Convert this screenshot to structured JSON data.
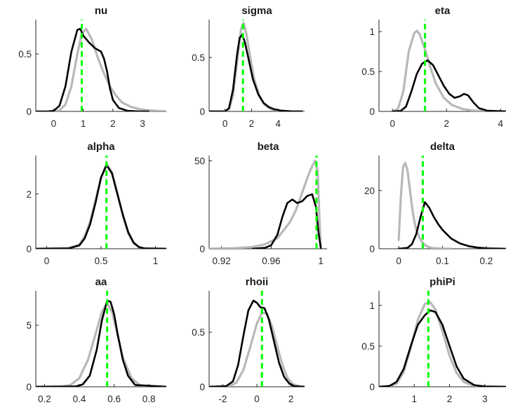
{
  "figure": {
    "colors": {
      "prior": "#b8b8b8",
      "posterior": "#000000",
      "mode": "#00ff00",
      "axis": "#262626"
    }
  },
  "chart_data": [
    {
      "type": "line",
      "title": "nu",
      "xlim": [
        -0.6,
        3.8
      ],
      "ylim": [
        0,
        0.8
      ],
      "xticks": [
        0,
        1,
        2,
        3
      ],
      "xticklabels": [
        "0",
        "1",
        "2",
        "3"
      ],
      "yticks": [
        0,
        0.5
      ],
      "yticklabels": [
        "0",
        "0.5"
      ],
      "mode": 0.95,
      "series": [
        {
          "role": "prior",
          "x": [
            0,
            0.2,
            0.4,
            0.6,
            0.8,
            0.95,
            1.1,
            1.3,
            1.5,
            1.7,
            1.9,
            2.1,
            2.3,
            2.6,
            2.9,
            3.2,
            3.5,
            3.8
          ],
          "y": [
            0,
            0.01,
            0.06,
            0.22,
            0.5,
            0.68,
            0.72,
            0.62,
            0.46,
            0.33,
            0.22,
            0.14,
            0.08,
            0.04,
            0.02,
            0.01,
            0.005,
            0
          ]
        },
        {
          "role": "posterior",
          "x": [
            -0.6,
            -0.2,
            0,
            0.2,
            0.4,
            0.6,
            0.8,
            0.9,
            1.0,
            1.2,
            1.4,
            1.6,
            1.7,
            1.8,
            1.9,
            2.0,
            2.2,
            2.5,
            2.9,
            3.2
          ],
          "y": [
            0,
            0,
            0.005,
            0.05,
            0.22,
            0.52,
            0.71,
            0.72,
            0.66,
            0.6,
            0.55,
            0.52,
            0.46,
            0.35,
            0.2,
            0.1,
            0.03,
            0.005,
            0,
            0
          ]
        }
      ]
    },
    {
      "type": "line",
      "title": "sigma",
      "xlim": [
        -1.2,
        6.0
      ],
      "ylim": [
        0,
        0.85
      ],
      "xticks": [
        0,
        2,
        4
      ],
      "xticklabels": [
        "0",
        "2",
        "4"
      ],
      "yticks": [
        0,
        0.5
      ],
      "yticklabels": [
        "0",
        "0.5"
      ],
      "mode": 1.35,
      "series": [
        {
          "role": "prior",
          "x": [
            -1.2,
            0,
            0.3,
            0.6,
            0.9,
            1.2,
            1.4,
            1.6,
            1.9,
            2.2,
            2.6,
            3.0,
            3.5,
            4.0,
            4.5,
            5.0,
            6.0
          ],
          "y": [
            0,
            0,
            0.02,
            0.15,
            0.45,
            0.76,
            0.82,
            0.72,
            0.5,
            0.3,
            0.14,
            0.06,
            0.02,
            0.008,
            0.003,
            0.001,
            0
          ]
        },
        {
          "role": "posterior",
          "x": [
            -1.2,
            0,
            0.3,
            0.6,
            0.9,
            1.1,
            1.3,
            1.5,
            1.8,
            2.1,
            2.5,
            2.9,
            3.3,
            3.7,
            4.2,
            4.7,
            5.0,
            5.8
          ],
          "y": [
            0,
            0,
            0.03,
            0.2,
            0.52,
            0.68,
            0.71,
            0.64,
            0.47,
            0.3,
            0.16,
            0.08,
            0.04,
            0.02,
            0.008,
            0.003,
            0,
            0
          ]
        }
      ]
    },
    {
      "type": "line",
      "title": "eta",
      "xlim": [
        -0.5,
        4.2
      ],
      "ylim": [
        0,
        1.15
      ],
      "xticks": [
        0,
        2,
        4
      ],
      "xticklabels": [
        "0",
        "2",
        "4"
      ],
      "yticks": [
        0,
        0.5,
        1
      ],
      "yticklabels": [
        "0",
        "0.5",
        "1"
      ],
      "mode": 1.2,
      "series": [
        {
          "role": "prior",
          "x": [
            0,
            0.2,
            0.4,
            0.6,
            0.8,
            0.9,
            1.0,
            1.2,
            1.4,
            1.6,
            1.9,
            2.2,
            2.6,
            3.0,
            3.5,
            4.2
          ],
          "y": [
            0,
            0.03,
            0.25,
            0.75,
            0.98,
            1.01,
            0.97,
            0.78,
            0.55,
            0.35,
            0.17,
            0.08,
            0.03,
            0.01,
            0.003,
            0
          ]
        },
        {
          "role": "posterior",
          "x": [
            0,
            0.3,
            0.5,
            0.7,
            0.9,
            1.1,
            1.3,
            1.5,
            1.7,
            1.9,
            2.1,
            2.3,
            2.5,
            2.65,
            2.8,
            3.0,
            3.2,
            3.5,
            4.2
          ],
          "y": [
            0,
            0.005,
            0.06,
            0.25,
            0.47,
            0.6,
            0.64,
            0.58,
            0.45,
            0.32,
            0.22,
            0.17,
            0.19,
            0.22,
            0.2,
            0.11,
            0.04,
            0.01,
            0
          ]
        }
      ]
    },
    {
      "type": "line",
      "title": "alpha",
      "xlim": [
        -0.1,
        1.1
      ],
      "ylim": [
        0,
        3.4
      ],
      "xticks": [
        0,
        0.5,
        1
      ],
      "xticklabels": [
        "0",
        "0.5",
        "1"
      ],
      "yticks": [
        0,
        2
      ],
      "yticklabels": [
        "0",
        "2"
      ],
      "mode": 0.55,
      "series": [
        {
          "role": "prior",
          "x": [
            -0.1,
            0.2,
            0.3,
            0.35,
            0.4,
            0.45,
            0.5,
            0.55,
            0.6,
            0.65,
            0.7,
            0.75,
            0.8,
            0.85,
            0.9,
            1.1
          ],
          "y": [
            0,
            0.02,
            0.15,
            0.45,
            1.0,
            1.8,
            2.6,
            3.1,
            2.8,
            2.0,
            1.2,
            0.55,
            0.2,
            0.05,
            0.01,
            0
          ]
        },
        {
          "role": "posterior",
          "x": [
            -0.1,
            0.2,
            0.3,
            0.35,
            0.4,
            0.45,
            0.5,
            0.55,
            0.6,
            0.65,
            0.7,
            0.75,
            0.8,
            0.85,
            0.9,
            1.1
          ],
          "y": [
            0,
            0.01,
            0.12,
            0.38,
            0.9,
            1.7,
            2.6,
            3.05,
            2.75,
            2.0,
            1.25,
            0.6,
            0.22,
            0.06,
            0.01,
            0
          ]
        }
      ]
    },
    {
      "type": "line",
      "title": "beta",
      "xlim": [
        0.91,
        1.005
      ],
      "ylim": [
        0,
        53
      ],
      "xticks": [
        0.92,
        0.96,
        1
      ],
      "xticklabels": [
        "0.92",
        "0.96",
        "1"
      ],
      "yticks": [
        0,
        50
      ],
      "yticklabels": [
        "0",
        "50"
      ],
      "mode": 0.9965,
      "series": [
        {
          "role": "prior",
          "x": [
            0.91,
            0.93,
            0.945,
            0.955,
            0.965,
            0.975,
            0.98,
            0.985,
            0.99,
            0.993,
            0.9955,
            0.9975,
            0.999,
            1.0
          ],
          "y": [
            0,
            0.3,
            1,
            2.5,
            6,
            15,
            22,
            32,
            42,
            47,
            50,
            44,
            15,
            0
          ]
        },
        {
          "role": "posterior",
          "x": [
            0.945,
            0.955,
            0.96,
            0.965,
            0.969,
            0.973,
            0.977,
            0.981,
            0.985,
            0.989,
            0.993,
            0.996,
            0.998,
            1.0
          ],
          "y": [
            0,
            0.5,
            2,
            8,
            18,
            26,
            28,
            26,
            27,
            30,
            31,
            24,
            10,
            0
          ]
        }
      ]
    },
    {
      "type": "line",
      "title": "delta",
      "xlim": [
        -0.045,
        0.245
      ],
      "ylim": [
        0,
        32
      ],
      "xticks": [
        0,
        0.1,
        0.2
      ],
      "xticklabels": [
        "0",
        "0.1",
        "0.2"
      ],
      "yticks": [
        0,
        20
      ],
      "yticklabels": [
        "0",
        "20"
      ],
      "mode": 0.055,
      "series": [
        {
          "role": "prior",
          "x": [
            0.0,
            0.005,
            0.01,
            0.015,
            0.02,
            0.025,
            0.03,
            0.035,
            0.04,
            0.05,
            0.06,
            0.07,
            0.08,
            0.1,
            0.12
          ],
          "y": [
            3,
            18,
            28,
            29.5,
            27,
            21,
            15,
            10,
            6.5,
            3,
            1.2,
            0.5,
            0.2,
            0.05,
            0
          ]
        },
        {
          "role": "posterior",
          "x": [
            0.0,
            0.02,
            0.03,
            0.04,
            0.05,
            0.06,
            0.07,
            0.08,
            0.09,
            0.1,
            0.12,
            0.14,
            0.16,
            0.18,
            0.2,
            0.245
          ],
          "y": [
            0,
            0.3,
            1.5,
            5,
            11,
            16,
            14,
            11,
            8.5,
            6.5,
            3.5,
            1.8,
            0.9,
            0.4,
            0.15,
            0
          ]
        }
      ]
    },
    {
      "type": "line",
      "title": "aa",
      "xlim": [
        0.15,
        0.9
      ],
      "ylim": [
        0,
        7.8
      ],
      "xticks": [
        0.2,
        0.4,
        0.6,
        0.8
      ],
      "xticklabels": [
        "0.2",
        "0.4",
        "0.6",
        "0.8"
      ],
      "yticks": [
        0,
        5
      ],
      "yticklabels": [
        "0",
        "5"
      ],
      "mode": 0.56,
      "series": [
        {
          "role": "prior",
          "x": [
            0.15,
            0.3,
            0.35,
            0.4,
            0.45,
            0.5,
            0.53,
            0.56,
            0.59,
            0.62,
            0.65,
            0.7,
            0.75,
            0.9
          ],
          "y": [
            0,
            0.02,
            0.15,
            0.7,
            2.2,
            4.6,
            6.1,
            6.8,
            6.0,
            4.2,
            2.4,
            0.7,
            0.1,
            0
          ]
        },
        {
          "role": "posterior",
          "x": [
            0.15,
            0.38,
            0.42,
            0.46,
            0.5,
            0.53,
            0.56,
            0.58,
            0.6,
            0.62,
            0.65,
            0.68,
            0.72,
            0.9
          ],
          "y": [
            0,
            0.02,
            0.2,
            0.9,
            3.0,
            5.4,
            7.0,
            6.9,
            5.9,
            4.3,
            2.2,
            0.9,
            0.15,
            0
          ]
        }
      ]
    },
    {
      "type": "line",
      "title": "rhoii",
      "xlim": [
        -2.8,
        2.8
      ],
      "ylim": [
        0,
        0.88
      ],
      "xticks": [
        -2,
        0,
        2
      ],
      "xticklabels": [
        "-2",
        "0",
        "2"
      ],
      "yticks": [
        0,
        0.5
      ],
      "yticklabels": [
        "0",
        "0.5"
      ],
      "mode": 0.3,
      "series": [
        {
          "role": "prior",
          "x": [
            -2.8,
            -1.6,
            -1.2,
            -0.8,
            -0.4,
            0,
            0.3,
            0.6,
            0.9,
            1.2,
            1.5,
            1.8,
            2.1,
            2.5,
            2.8
          ],
          "y": [
            0,
            0.005,
            0.04,
            0.15,
            0.36,
            0.58,
            0.68,
            0.67,
            0.55,
            0.37,
            0.2,
            0.08,
            0.025,
            0.005,
            0
          ]
        },
        {
          "role": "posterior",
          "x": [
            -2.8,
            -1.8,
            -1.4,
            -1.1,
            -0.8,
            -0.5,
            -0.2,
            0,
            0.2,
            0.45,
            0.7,
            1.0,
            1.3,
            1.6,
            1.9,
            2.2,
            2.8
          ],
          "y": [
            0,
            0.005,
            0.05,
            0.2,
            0.46,
            0.7,
            0.79,
            0.77,
            0.73,
            0.72,
            0.62,
            0.42,
            0.22,
            0.09,
            0.03,
            0.005,
            0
          ]
        }
      ]
    },
    {
      "type": "line",
      "title": "phiPi",
      "xlim": [
        0,
        3.6
      ],
      "ylim": [
        0,
        1.18
      ],
      "xticks": [
        1,
        2,
        3
      ],
      "xticklabels": [
        "1",
        "2",
        "3"
      ],
      "yticks": [
        0,
        0.5,
        1
      ],
      "yticklabels": [
        "0",
        "0.5",
        "1"
      ],
      "mode": 1.4,
      "series": [
        {
          "role": "prior",
          "x": [
            0,
            0.3,
            0.5,
            0.7,
            0.9,
            1.1,
            1.3,
            1.45,
            1.6,
            1.8,
            2.0,
            2.2,
            2.4,
            2.7,
            3.0,
            3.6
          ],
          "y": [
            0,
            0.005,
            0.04,
            0.18,
            0.48,
            0.82,
            1.02,
            1.04,
            0.95,
            0.68,
            0.38,
            0.17,
            0.06,
            0.01,
            0.002,
            0
          ]
        },
        {
          "role": "posterior",
          "x": [
            0,
            0.3,
            0.5,
            0.7,
            0.9,
            1.1,
            1.3,
            1.45,
            1.6,
            1.8,
            2.0,
            2.2,
            2.4,
            2.7,
            3.0,
            3.6
          ],
          "y": [
            0,
            0.01,
            0.06,
            0.22,
            0.5,
            0.76,
            0.88,
            0.94,
            0.92,
            0.76,
            0.5,
            0.25,
            0.1,
            0.02,
            0.004,
            0
          ]
        }
      ]
    }
  ]
}
